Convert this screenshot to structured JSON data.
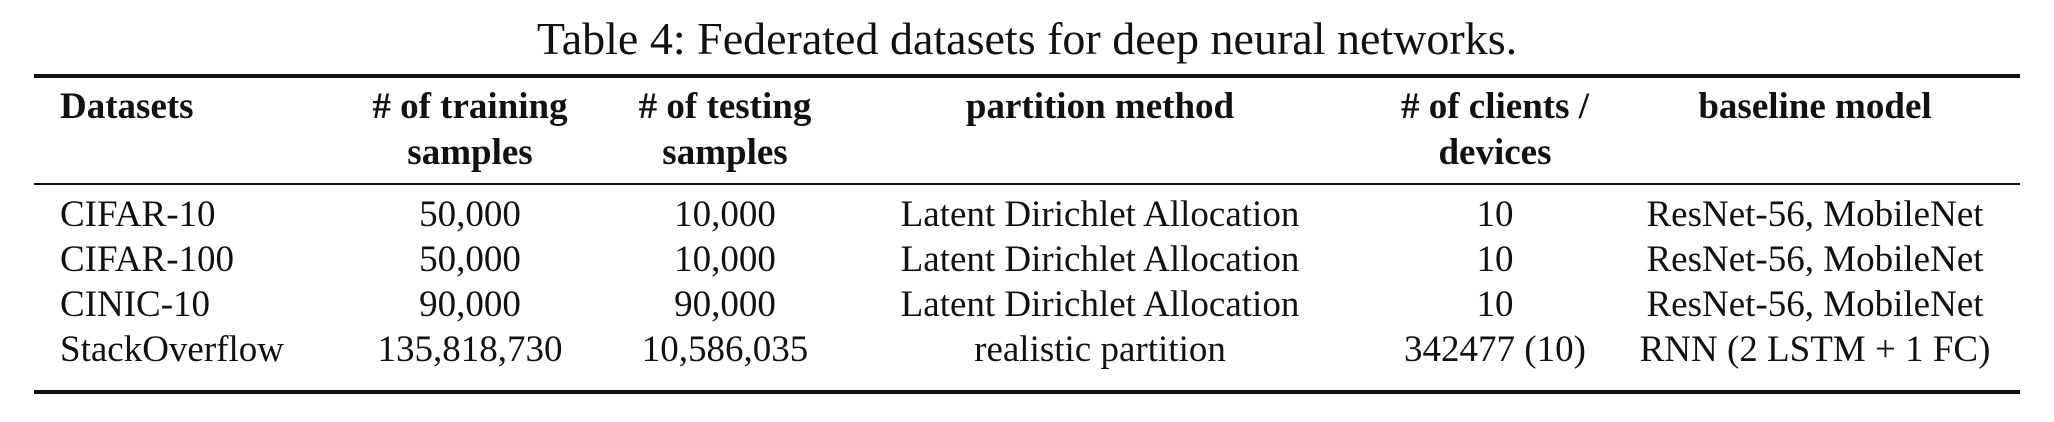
{
  "caption": "Table 4: Federated datasets for deep neural networks.",
  "table": {
    "headers": [
      [
        "Datasets"
      ],
      [
        "# of training",
        "samples"
      ],
      [
        "# of testing",
        "samples"
      ],
      [
        "partition method"
      ],
      [
        "# of clients /",
        "devices"
      ],
      [
        "baseline model"
      ]
    ],
    "rows": [
      [
        "CIFAR-10",
        "50,000",
        "10,000",
        "Latent Dirichlet Allocation",
        "10",
        "ResNet-56, MobileNet"
      ],
      [
        "CIFAR-100",
        "50,000",
        "10,000",
        "Latent Dirichlet Allocation",
        "10",
        "ResNet-56, MobileNet"
      ],
      [
        "CINIC-10",
        "90,000",
        "90,000",
        "Latent Dirichlet Allocation",
        "10",
        "ResNet-56, MobileNet"
      ],
      [
        "StackOverflow",
        "135,818,730",
        "10,586,035",
        "realistic partition",
        "342477 (10)",
        "RNN (2 LSTM + 1 FC)"
      ]
    ]
  }
}
